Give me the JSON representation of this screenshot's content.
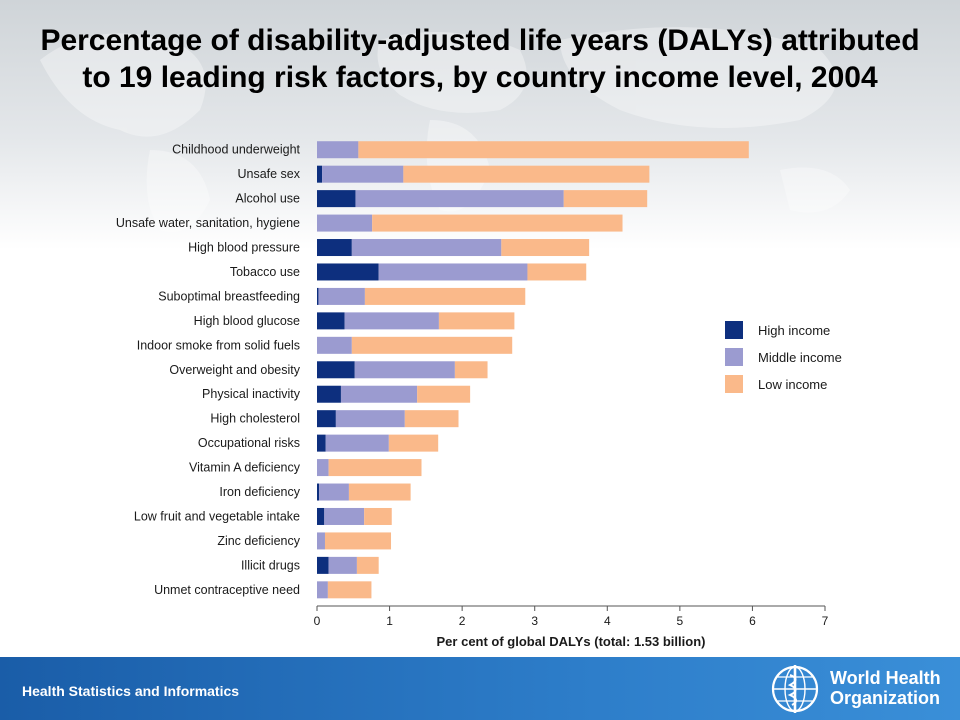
{
  "slide": {
    "title": "Percentage of disability-adjusted life years (DALYs) attributed to 19 leading risk factors, by country income level, 2004",
    "footer_text": "Health Statistics and Informatics",
    "org_name_line1": "World Health",
    "org_name_line2": "Organization"
  },
  "chart_data": {
    "type": "bar",
    "orientation": "horizontal",
    "stacked": true,
    "title": "",
    "xlabel": "Per cent of global DALYs (total: 1.53 billion)",
    "ylabel": "",
    "xlim": [
      0,
      7
    ],
    "xticks": [
      0,
      1,
      2,
      3,
      4,
      5,
      6,
      7
    ],
    "grid": false,
    "legend_position": "right",
    "categories": [
      "Childhood underweight",
      "Unsafe sex",
      "Alcohol use",
      "Unsafe water, sanitation, hygiene",
      "High blood pressure",
      "Tobacco use",
      "Suboptimal breastfeeding",
      "High blood glucose",
      "Indoor smoke from solid fuels",
      "Overweight and obesity",
      "Physical inactivity",
      "High cholesterol",
      "Occupational risks",
      "Vitamin A deficiency",
      "Iron deficiency",
      "Low fruit and vegetable intake",
      "Zinc deficiency",
      "Illicit drugs",
      "Unmet contraceptive need"
    ],
    "series": [
      {
        "name": "High income",
        "color": "#0d2f7e",
        "values": [
          0.0,
          0.07,
          0.53,
          0.0,
          0.48,
          0.85,
          0.02,
          0.38,
          0.0,
          0.52,
          0.33,
          0.26,
          0.12,
          0.0,
          0.03,
          0.1,
          0.0,
          0.16,
          0.0
        ]
      },
      {
        "name": "Middle income",
        "color": "#9b9bd0",
        "values": [
          0.57,
          1.12,
          2.87,
          0.76,
          2.06,
          2.05,
          0.64,
          1.3,
          0.48,
          1.38,
          1.05,
          0.95,
          0.87,
          0.16,
          0.41,
          0.55,
          0.11,
          0.39,
          0.15
        ]
      },
      {
        "name": "Low income",
        "color": "#fab98a",
        "values": [
          5.38,
          3.39,
          1.15,
          3.45,
          1.21,
          0.81,
          2.21,
          1.04,
          2.21,
          0.45,
          0.73,
          0.74,
          0.68,
          1.28,
          0.85,
          0.38,
          0.91,
          0.3,
          0.6
        ]
      }
    ]
  }
}
